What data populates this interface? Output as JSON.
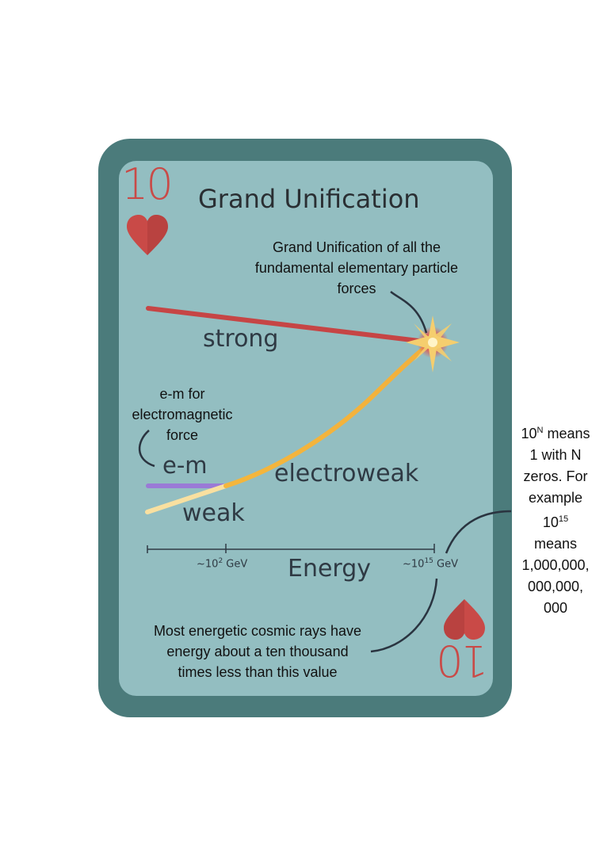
{
  "card": {
    "rank": "10",
    "suit_icon": "heart-icon",
    "title": "Grand Unification",
    "colors": {
      "border": "#4b7b7b",
      "face": "#93bec1",
      "suit": "#c94a47",
      "strong": "#c64545",
      "em": "#9a7ad6",
      "weak": "#f9e0a0",
      "electroweak": "#f0b43c"
    }
  },
  "annotations": {
    "unification_lines": [
      "Grand Unification of all the",
      "fundamental elementary particle",
      "forces"
    ],
    "em_note_lines": [
      "e-m for",
      "electromagnetic",
      "force"
    ],
    "cosmic_rays_lines": [
      "Most energetic cosmic rays have",
      "energy about a ten thousand",
      "times less than this value"
    ],
    "notation_lines": [
      "means",
      "1 with N",
      "zeros. For",
      "example",
      "means",
      "1,000,000,",
      "000,000,",
      "000"
    ],
    "notation_base": "10",
    "notation_sup_n": "N",
    "notation_sup_15": "15"
  },
  "forces": {
    "strong": "strong",
    "em": "e-m",
    "electroweak": "electroweak",
    "weak": "weak"
  },
  "axis": {
    "label": "Energy",
    "tick1_prefix": "~10",
    "tick1_exp": "2",
    "tick1_unit": " GeV",
    "tick2_prefix": "~10",
    "tick2_exp": "15",
    "tick2_unit": " GeV"
  }
}
